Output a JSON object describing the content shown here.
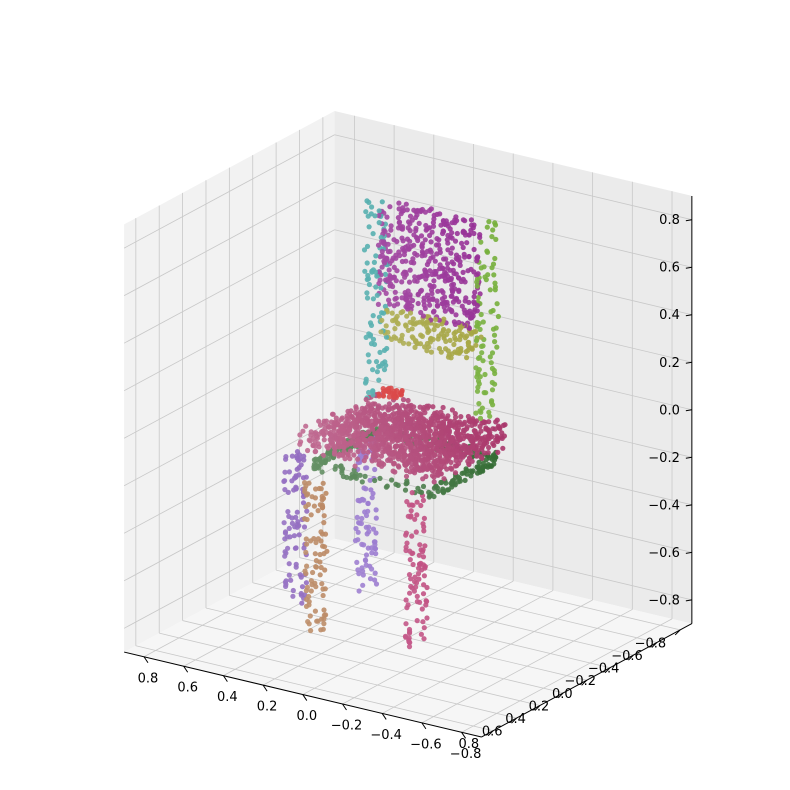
{
  "chart_data": {
    "type": "scatter",
    "subtype": "3d-scatter",
    "title": "",
    "xlabel": "",
    "ylabel": "",
    "zlabel": "",
    "xlim": [
      -0.9,
      0.9
    ],
    "ylim": [
      -0.9,
      0.9
    ],
    "zlim": [
      -0.9,
      0.9
    ],
    "grid": true,
    "legend": "none",
    "x_ticks": [
      -0.8,
      -0.6,
      -0.4,
      -0.2,
      0.0,
      0.2,
      0.4,
      0.6,
      0.8
    ],
    "y_ticks": [
      0.8,
      0.6,
      0.4,
      0.2,
      0.0,
      -0.2,
      -0.4,
      -0.6,
      -0.8
    ],
    "z_ticks": [
      -0.8,
      -0.6,
      -0.4,
      -0.2,
      0.0,
      0.2,
      0.4,
      0.6,
      0.8
    ],
    "x_tick_labels": [
      "−0.8",
      "−0.6",
      "−0.4",
      "−0.2",
      "0.0",
      "0.2",
      "0.4",
      "0.6",
      "0.8"
    ],
    "y_tick_labels": [
      "0.8",
      "0.6",
      "0.4",
      "0.2",
      "0.0",
      "−0.2",
      "−0.4",
      "−0.6",
      "−0.8"
    ],
    "z_tick_labels": [
      "−0.8",
      "−0.6",
      "−0.4",
      "−0.2",
      "0.0",
      "0.2",
      "0.4",
      "0.6",
      "0.8"
    ],
    "series": [
      {
        "part": "backrest",
        "color": "#8b1a8b",
        "shape": "plane",
        "x": [
          -0.25,
          0.25
        ],
        "y": [
          -0.22,
          -0.15
        ],
        "z": [
          0.4,
          0.85
        ]
      },
      {
        "part": "back-rail",
        "color": "#9a9a2a",
        "shape": "plane",
        "x": [
          -0.25,
          0.25
        ],
        "y": [
          -0.22,
          -0.18
        ],
        "z": [
          0.25,
          0.4
        ]
      },
      {
        "part": "back-post-left",
        "color": "#6aa82a",
        "shape": "column",
        "x": -0.28,
        "y": -0.2,
        "z": [
          0.0,
          0.85
        ]
      },
      {
        "part": "back-post-right",
        "color": "#2a9a9a",
        "shape": "column",
        "x": 0.28,
        "y": -0.2,
        "z": [
          0.0,
          0.85
        ]
      },
      {
        "part": "seat",
        "color": "#a0205a",
        "shape": "plane",
        "x": [
          -0.35,
          0.35
        ],
        "y": [
          -0.3,
          0.35
        ],
        "z": [
          -0.1,
          0.0
        ]
      },
      {
        "part": "seat-apron",
        "color": "#1a5a1a",
        "shape": "ring",
        "x": [
          -0.3,
          0.3
        ],
        "y": [
          -0.25,
          0.3
        ],
        "z": -0.15
      },
      {
        "part": "seat-accent",
        "color": "#d01818",
        "shape": "patch",
        "x": 0.2,
        "y": -0.2,
        "z": 0.02
      },
      {
        "part": "front-leg-left",
        "color": "#b02060",
        "shape": "column",
        "x": -0.25,
        "y": 0.35,
        "z": [
          -0.8,
          -0.15
        ]
      },
      {
        "part": "front-leg-right",
        "color": "#9a5018",
        "shape": "column",
        "x": 0.2,
        "y": 0.45,
        "z": [
          -0.8,
          -0.15
        ]
      },
      {
        "part": "back-leg-left",
        "color": "#7a50c0",
        "shape": "column",
        "x": 0.3,
        "y": -0.15,
        "z": [
          -0.8,
          -0.15
        ]
      },
      {
        "part": "back-leg-right",
        "color": "#5a20a0",
        "shape": "column",
        "x": 0.45,
        "y": 0.2,
        "z": [
          -0.8,
          -0.15
        ]
      }
    ]
  }
}
